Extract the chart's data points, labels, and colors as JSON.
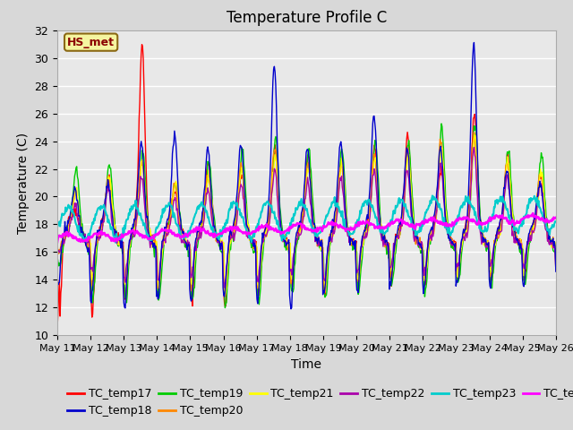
{
  "title": "Temperature Profile C",
  "xlabel": "Time",
  "ylabel": "Temperature (C)",
  "ylim": [
    10,
    32
  ],
  "yticks": [
    10,
    12,
    14,
    16,
    18,
    20,
    22,
    24,
    26,
    28,
    30,
    32
  ],
  "x_ticks_days": [
    11,
    12,
    13,
    14,
    15,
    16,
    17,
    18,
    19,
    20,
    21,
    22,
    23,
    24,
    25,
    26
  ],
  "annotation_text": "HS_met",
  "series_colors": {
    "TC_temp17": "#ff0000",
    "TC_temp18": "#0000cc",
    "TC_temp19": "#00cc00",
    "TC_temp20": "#ff8800",
    "TC_temp21": "#ffff00",
    "TC_temp22": "#aa00aa",
    "TC_temp23": "#00cccc",
    "TC_temp24": "#ff00ff"
  },
  "background_color": "#d8d8d8",
  "plot_bg_color": "#e8e8e8",
  "grid_color": "#ffffff",
  "title_fontsize": 12,
  "legend_fontsize": 9,
  "axis_label_fontsize": 10,
  "tick_fontsize": 9
}
